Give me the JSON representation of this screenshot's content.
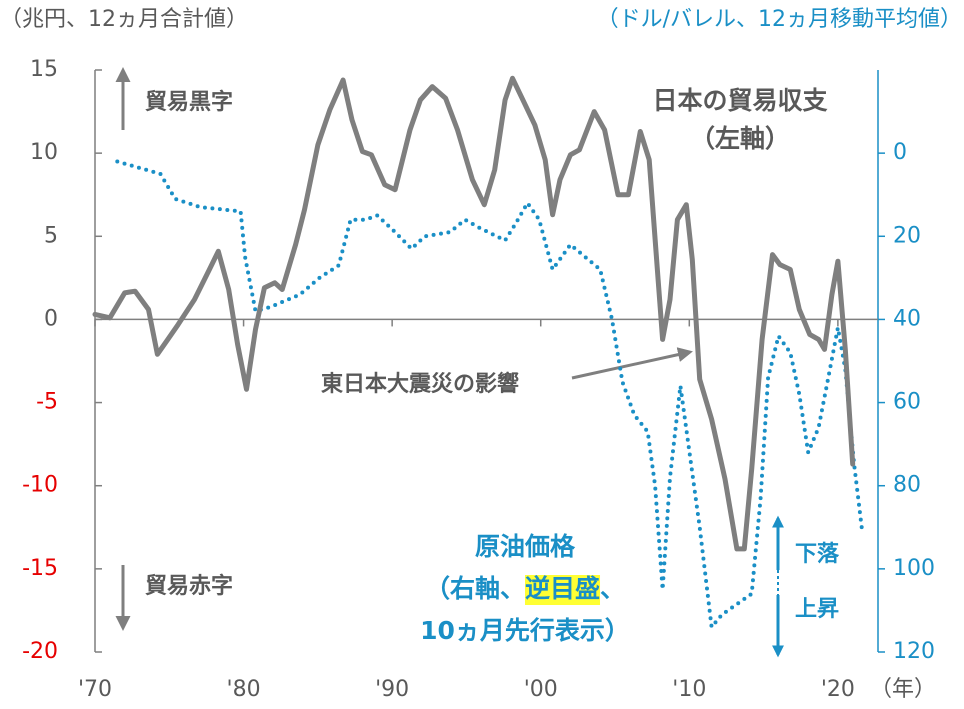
{
  "chart_data": {
    "type": "line",
    "y_unit_label": "（兆円、12ヵ月合計値）",
    "y2_unit_label": "（ドル/バレル、12ヵ月移動平均値）",
    "x_unit_label": "（年）",
    "xlim": [
      1970,
      2022.7
    ],
    "xticks": [
      {
        "value": 1970,
        "label": "'70"
      },
      {
        "value": 1980,
        "label": "'80"
      },
      {
        "value": 1990,
        "label": "'90"
      },
      {
        "value": 2000,
        "label": "'00"
      },
      {
        "value": 2010,
        "label": "'10"
      },
      {
        "value": 2020,
        "label": "'20"
      }
    ],
    "ylim": [
      -20,
      15
    ],
    "yticks": [
      -20,
      -15,
      -10,
      -5,
      0,
      5,
      10,
      15
    ],
    "negative_tick_color": "#e60000",
    "y2lim": [
      -20,
      120
    ],
    "y2_inverted": true,
    "y2ticks": [
      0,
      20,
      40,
      60,
      80,
      100,
      120
    ],
    "annotations": {
      "surplus": "貿易黒字",
      "deficit": "貿易赤字",
      "trade_label": [
        "日本の貿易収支",
        "（左軸）"
      ],
      "quake": "東日本大震災の影響",
      "oil_label": [
        "原油価格",
        "（右軸、",
        "逆目盛",
        "、",
        "10ヵ月先行表示）"
      ],
      "fall": "下落",
      "rise": "上昇"
    },
    "series": [
      {
        "name": "日本の貿易収支",
        "color": "#7f7f7f",
        "line_style": "solid",
        "axis": "y",
        "x": [
          1970,
          1971,
          1972,
          1972.7,
          1973.6,
          1974.2,
          1974.9,
          1975.6,
          1976.7,
          1977.7,
          1978.3,
          1979.0,
          1979.6,
          1980.2,
          1980.8,
          1981.4,
          1982.1,
          1982.6,
          1983.5,
          1984.1,
          1985.0,
          1985.8,
          1986.7,
          1987.3,
          1988.0,
          1988.6,
          1989.5,
          1990.2,
          1991.2,
          1991.9,
          1992.7,
          1993.6,
          1994.4,
          1995.4,
          1996.2,
          1996.9,
          1997.6,
          1998.1,
          1998.8,
          1999.6,
          2000.3,
          2000.8,
          2001.3,
          2002.0,
          2002.6,
          2003.6,
          2004.3,
          2005.2,
          2005.9,
          2006.7,
          2007.3,
          2007.9,
          2008.2,
          2008.7,
          2009.2,
          2009.8,
          2010.2,
          2010.7,
          2011.5,
          2012.4,
          2013.2,
          2013.7,
          2014.2,
          2014.9,
          2015.6,
          2016.1,
          2016.8,
          2017.4,
          2018.1,
          2018.7,
          2019.1,
          2019.6,
          2020.0,
          2020.5,
          2021.0
        ],
        "values": [
          0.3,
          0.1,
          1.6,
          1.7,
          0.6,
          -2.1,
          -1.2,
          -0.3,
          1.2,
          3.0,
          4.1,
          1.8,
          -1.5,
          -4.2,
          -0.6,
          1.9,
          2.2,
          1.8,
          4.5,
          6.6,
          10.5,
          12.6,
          14.4,
          12,
          10.1,
          9.9,
          8.1,
          7.8,
          11.4,
          13.2,
          14,
          13.3,
          11.4,
          8.4,
          6.9,
          9.0,
          13.2,
          14.5,
          13.2,
          11.7,
          9.6,
          6.3,
          8.4,
          9.9,
          10.2,
          12.5,
          11.4,
          7.5,
          7.5,
          11.3,
          9.6,
          2.4,
          -1.2,
          1.2,
          6,
          6.9,
          3.6,
          -3.6,
          -6,
          -9.6,
          -13.8,
          -13.8,
          -9,
          -1.2,
          3.9,
          3.3,
          3.0,
          0.6,
          -0.9,
          -1.2,
          -1.8,
          1.5,
          3.5,
          -1.8,
          -8.7
        ]
      },
      {
        "name": "原油価格",
        "color": "#1a8fc6",
        "line_style": "dotted",
        "axis": "y2",
        "x": [
          1971.5,
          1974.4,
          1975.4,
          1977.1,
          1979.8,
          1980.1,
          1980.8,
          1981.8,
          1983.8,
          1985.1,
          1986.4,
          1987.2,
          1988.2,
          1989.0,
          1990.2,
          1991.3,
          1992.2,
          1993.9,
          1994.9,
          1995.9,
          1997.6,
          1998.3,
          1999.1,
          1999.9,
          2000.8,
          2002.0,
          2003.0,
          2004.0,
          2004.8,
          2005.5,
          2006.3,
          2007.2,
          2007.7,
          2008.2,
          2008.7,
          2009.4,
          2009.9,
          2010.7,
          2011.5,
          2012.2,
          2013.4,
          2014.2,
          2014.8,
          2015.3,
          2016.0,
          2016.8,
          2017.4,
          2018.0,
          2018.7,
          2019.3,
          2020.0,
          2020.5,
          2021.1,
          2021.6
        ],
        "values": [
          2,
          5,
          11,
          13,
          14,
          25,
          38,
          37,
          34,
          30,
          27,
          16,
          16,
          15,
          19,
          23,
          20,
          19,
          16,
          18,
          21,
          17,
          12,
          16,
          28,
          22,
          25,
          28,
          40,
          55,
          63,
          67,
          80,
          105,
          78,
          56,
          69,
          90,
          114,
          111,
          108,
          106,
          83,
          54,
          44,
          48,
          58,
          72,
          66,
          55,
          42,
          52,
          75,
          90
        ]
      }
    ]
  }
}
